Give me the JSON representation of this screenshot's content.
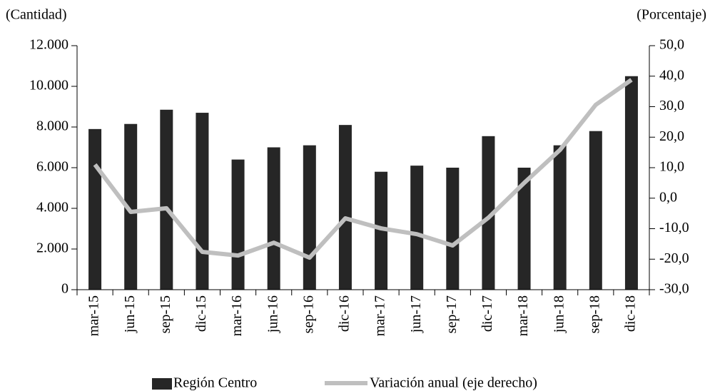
{
  "chart_data": {
    "type": "bar_line",
    "y_label": "(Cantidad)",
    "y2_label": "(Porcentaje)",
    "categories": [
      "mar-15",
      "jun-15",
      "sep-15",
      "dic-15",
      "mar-16",
      "jun-16",
      "sep-16",
      "dic-16",
      "mar-17",
      "jun-17",
      "sep-17",
      "dic-17",
      "mar-18",
      "jun-18",
      "sep-18",
      "dic-18"
    ],
    "series": [
      {
        "name": "Región Centro",
        "type": "bar",
        "color": "#262626",
        "values": [
          7900,
          8150,
          8850,
          8700,
          6400,
          7000,
          7100,
          8100,
          5800,
          6100,
          6000,
          7550,
          6000,
          7100,
          7800,
          10500
        ]
      },
      {
        "name": "Variación anual (eje derecho)",
        "type": "line",
        "axis": "y2",
        "color": "#bfbfbf",
        "values": [
          11.0,
          -4.5,
          -3.3,
          -17.6,
          -18.8,
          -14.6,
          -19.5,
          -6.6,
          -9.9,
          -11.8,
          -15.5,
          -6.4,
          5.0,
          15.8,
          30.6,
          38.8
        ]
      }
    ],
    "ylim": [
      0,
      12000
    ],
    "yticks": [
      0,
      {
        "value": 2000,
        "label": "2.000"
      },
      {
        "value": 4000,
        "label": "4.000"
      },
      {
        "value": 6000,
        "label": "6.000"
      },
      {
        "value": 8000,
        "label": "8.000"
      },
      {
        "value": 10000,
        "label": "10.000"
      },
      {
        "value": 12000,
        "label": "12.000"
      }
    ],
    "y2lim": [
      -30,
      50
    ],
    "y2ticks": [
      {
        "value": -30,
        "label": "-30,0"
      },
      {
        "value": -20,
        "label": "-20,0"
      },
      {
        "value": -10,
        "label": "-10,0"
      },
      {
        "value": 0,
        "label": "0,0"
      },
      {
        "value": 10,
        "label": "10,0"
      },
      {
        "value": 20,
        "label": "20,0"
      },
      {
        "value": 30,
        "label": "30,0"
      },
      {
        "value": 40,
        "label": "40,0"
      },
      {
        "value": 50,
        "label": "50,0"
      }
    ],
    "legend": "bottom"
  }
}
